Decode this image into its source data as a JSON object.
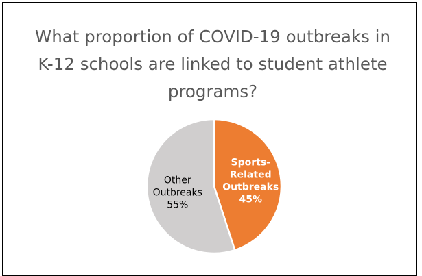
{
  "chart_data": {
    "type": "pie",
    "title": "What proportion of COVID-19 outbreaks in K-12 schools are linked to student athlete programs?",
    "slices": [
      {
        "label_lines": [
          "Sports-",
          "Related",
          "Outbreaks",
          "45%"
        ],
        "category": "Sports-Related Outbreaks",
        "value": 45,
        "color": "#ED7D31",
        "text_color": "#ffffff",
        "text_weight": "bold"
      },
      {
        "label_lines": [
          "Other",
          "Outbreaks",
          "55%"
        ],
        "category": "Other Outbreaks",
        "value": 55,
        "color": "#D0CECE",
        "text_color": "#000000",
        "text_weight": "normal"
      }
    ],
    "start_angle_deg": 0,
    "direction": "clockwise",
    "legend": "none",
    "data_labels": "inside"
  }
}
